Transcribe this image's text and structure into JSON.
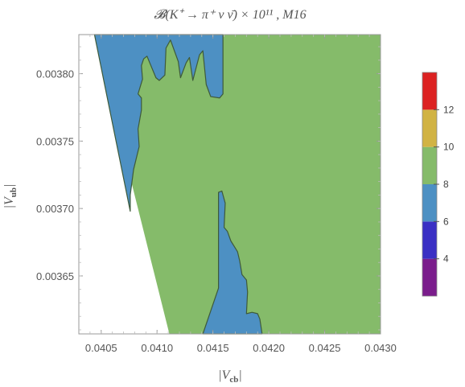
{
  "chart_data": {
    "type": "contour",
    "title": "𝓑(K⁺ → π⁺ ν ν̄) × 10¹¹ , M16",
    "xlabel": "|V_cb|",
    "ylabel": "|V_ub|",
    "xlim": [
      0.0403,
      0.043
    ],
    "ylim": [
      0.003607,
      0.003829
    ],
    "x_ticks": [
      "0.0405",
      "0.0410",
      "0.0415",
      "0.0420",
      "0.0425",
      "0.0430"
    ],
    "x_tick_values": [
      0.0405,
      0.041,
      0.0415,
      0.042,
      0.0425,
      0.043
    ],
    "y_ticks": [
      "0.00365",
      "0.00370",
      "0.00375",
      "0.00380"
    ],
    "y_tick_values": [
      0.00365,
      0.0037,
      0.00375,
      0.0038
    ],
    "colorbar": {
      "ticks": [
        "4",
        "6",
        "8",
        "10",
        "12"
      ],
      "levels": [
        2,
        4,
        6,
        8,
        10,
        12,
        14
      ],
      "colors": [
        "#7b1d8c",
        "#3a2fc4",
        "#4d90c3",
        "#85bb6a",
        "#d1b344",
        "#dc2222"
      ]
    },
    "regions": [
      {
        "level_range": [
          6,
          8
        ],
        "color": "#4d90c3",
        "points": [
          [
            0.04044,
            0.003829
          ],
          [
            0.04159,
            0.003829
          ],
          [
            0.04159,
            0.003785
          ],
          [
            0.04156,
            0.003782
          ],
          [
            0.04148,
            0.003783
          ],
          [
            0.04144,
            0.003792
          ],
          [
            0.04141,
            0.003817
          ],
          [
            0.04138,
            0.003814
          ],
          [
            0.04132,
            0.003795
          ],
          [
            0.04129,
            0.003812
          ],
          [
            0.04126,
            0.003808
          ],
          [
            0.04121,
            0.003797
          ],
          [
            0.04119,
            0.003809
          ],
          [
            0.04112,
            0.003825
          ],
          [
            0.04108,
            0.003819
          ],
          [
            0.04107,
            0.003799
          ],
          [
            0.04102,
            0.003795
          ],
          [
            0.04099,
            0.003797
          ],
          [
            0.04091,
            0.003813
          ],
          [
            0.04088,
            0.003811
          ],
          [
            0.04086,
            0.003806
          ],
          [
            0.04087,
            0.003796
          ],
          [
            0.04083,
            0.003785
          ],
          [
            0.04086,
            0.003782
          ],
          [
            0.04086,
            0.003773
          ],
          [
            0.04083,
            0.003759
          ],
          [
            0.04084,
            0.003746
          ],
          [
            0.04079,
            0.003729
          ],
          [
            0.04076,
            0.00371
          ],
          [
            0.04076,
            0.003698
          ]
        ]
      },
      {
        "level_range": [
          6,
          8
        ],
        "color": "#4d90c3",
        "points": [
          [
            0.04141,
            0.003607
          ],
          [
            0.04155,
            0.003641
          ],
          [
            0.04155,
            0.003712
          ],
          [
            0.04158,
            0.003713
          ],
          [
            0.04161,
            0.003704
          ],
          [
            0.0416,
            0.003686
          ],
          [
            0.04163,
            0.003683
          ],
          [
            0.04166,
            0.003676
          ],
          [
            0.04169,
            0.003672
          ],
          [
            0.04172,
            0.003668
          ],
          [
            0.04174,
            0.003661
          ],
          [
            0.04176,
            0.003651
          ],
          [
            0.0418,
            0.003647
          ],
          [
            0.04181,
            0.003638
          ],
          [
            0.0418,
            0.003622
          ],
          [
            0.04185,
            0.003623
          ],
          [
            0.0419,
            0.003622
          ],
          [
            0.04192,
            0.003618
          ],
          [
            0.04194,
            0.003607
          ]
        ]
      }
    ],
    "data_region": {
      "level_range": [
        8,
        10
      ],
      "color": "#85bb6a",
      "points": [
        [
          0.04044,
          0.003829
        ],
        [
          0.043,
          0.003829
        ],
        [
          0.043,
          0.003607
        ],
        [
          0.04111,
          0.003607
        ]
      ]
    }
  }
}
